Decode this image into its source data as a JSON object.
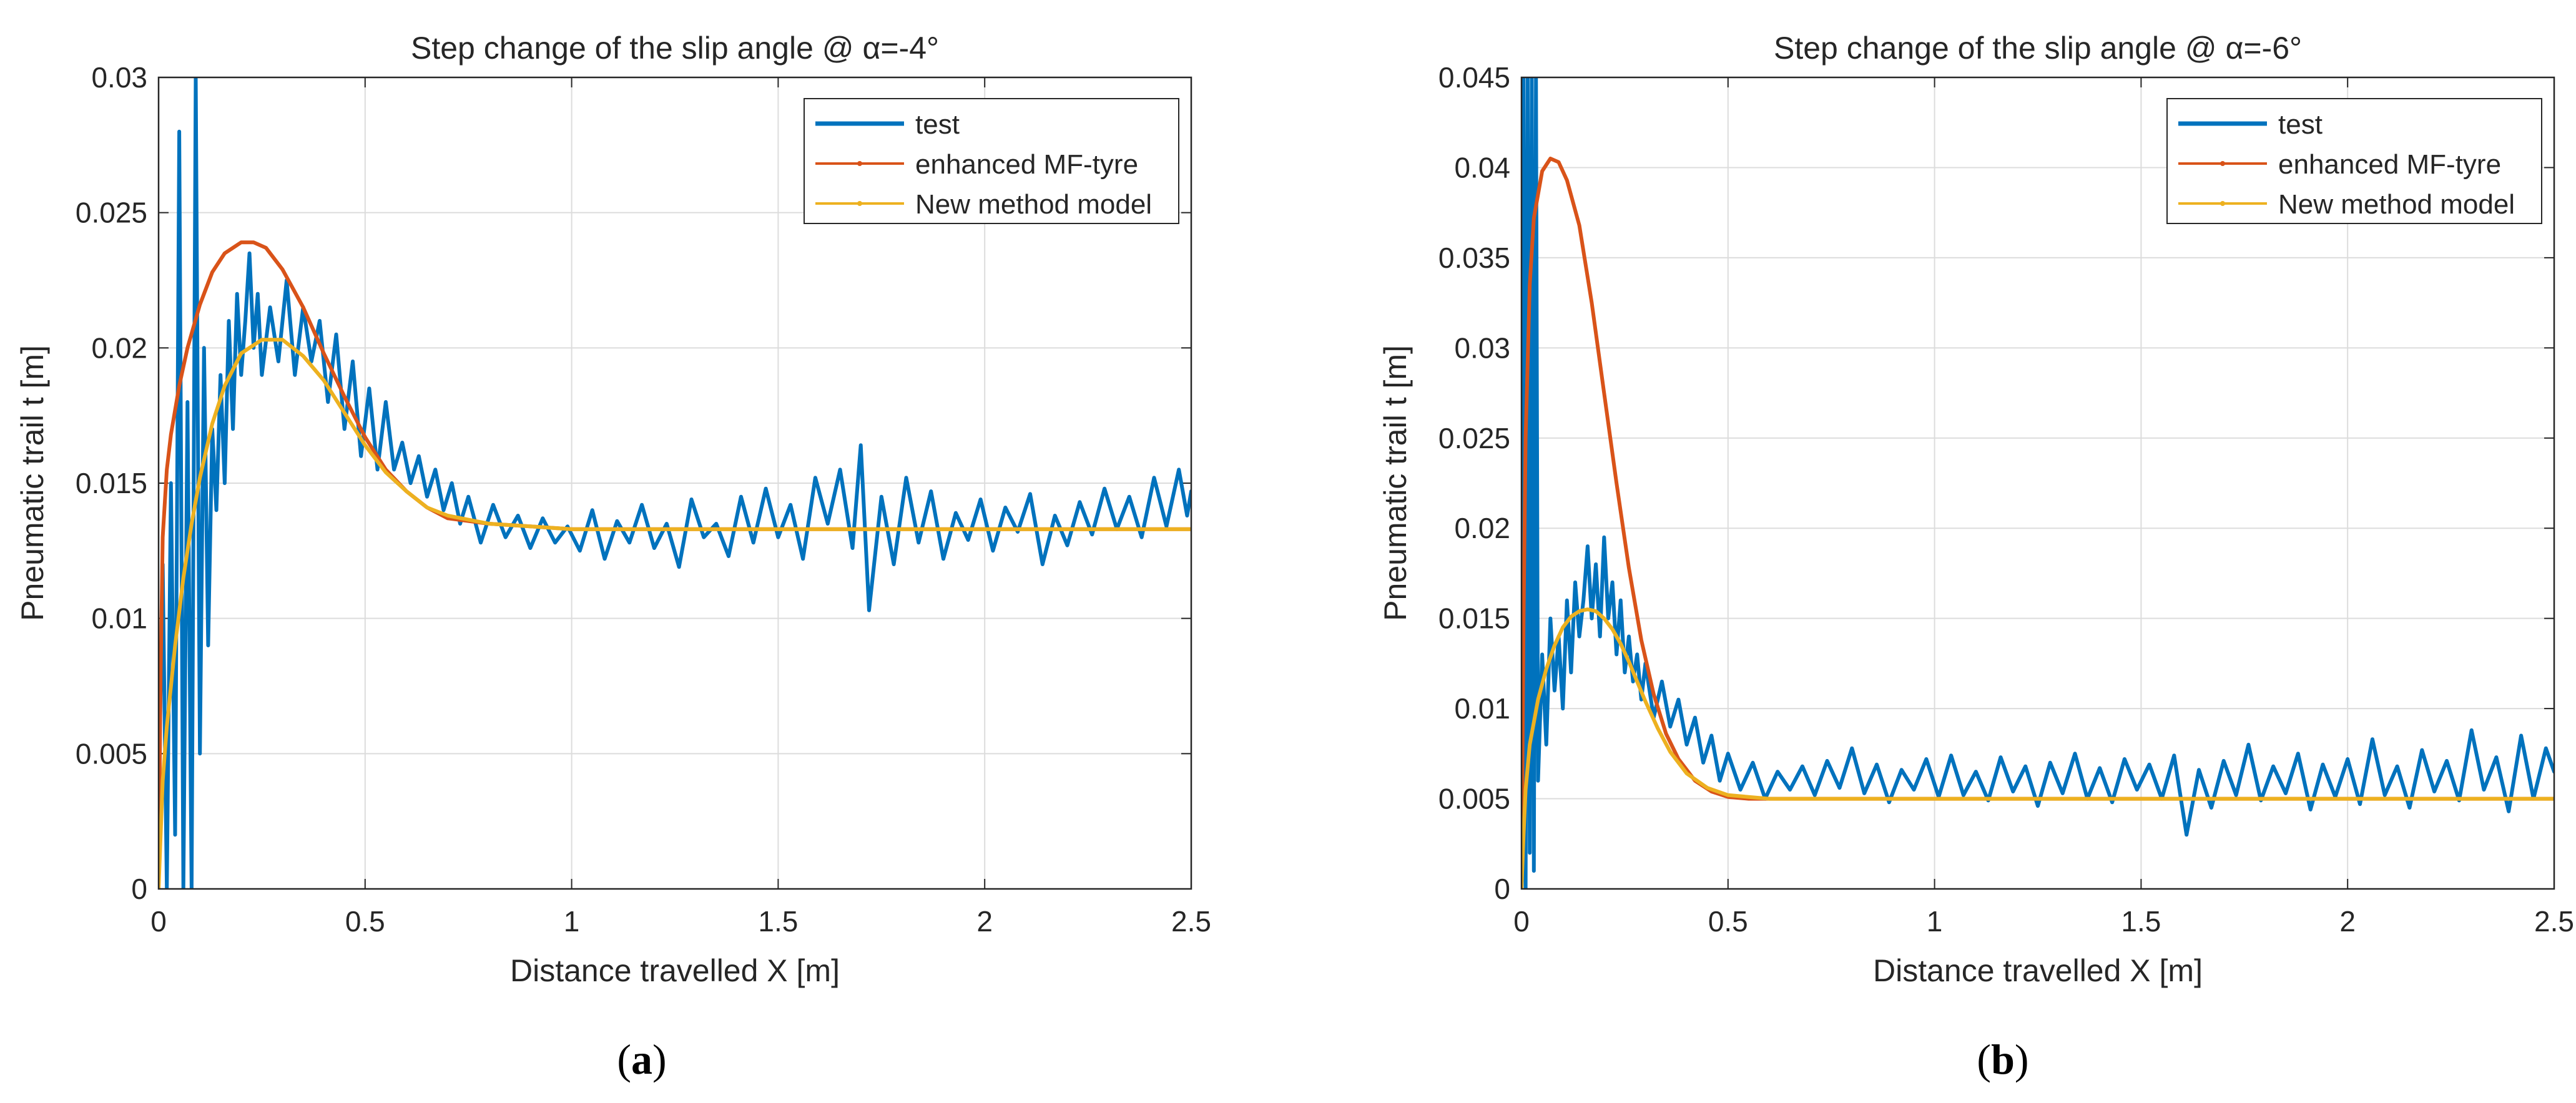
{
  "chart_data": [
    {
      "type": "line",
      "title": "Step change of the slip angle @ α=-4°",
      "xlabel": "Distance travelled X [m]",
      "ylabel": "Pneumatic trail t [m]",
      "xlim": [
        0,
        2.5
      ],
      "ylim": [
        0,
        0.03
      ],
      "xticks": [
        0,
        0.5,
        1,
        1.5,
        2,
        2.5
      ],
      "xtick_labels": [
        "0",
        "0.5",
        "1",
        "1.5",
        "2",
        "2.5"
      ],
      "yticks": [
        0,
        0.005,
        0.01,
        0.015,
        0.02,
        0.025,
        0.03
      ],
      "ytick_labels": [
        "0",
        "0.005",
        "0.01",
        "0.015",
        "0.02",
        "0.025",
        "0.03"
      ],
      "grid": true,
      "legend_position": "top-right",
      "panel_label": "a",
      "series": [
        {
          "name": "test",
          "color": "#0072BD",
          "x": [
            0,
            0.01,
            0.02,
            0.03,
            0.04,
            0.05,
            0.06,
            0.07,
            0.08,
            0.09,
            0.1,
            0.11,
            0.12,
            0.13,
            0.14,
            0.15,
            0.16,
            0.17,
            0.18,
            0.19,
            0.2,
            0.21,
            0.22,
            0.23,
            0.24,
            0.25,
            0.27,
            0.29,
            0.31,
            0.33,
            0.35,
            0.37,
            0.39,
            0.41,
            0.43,
            0.45,
            0.47,
            0.49,
            0.51,
            0.53,
            0.55,
            0.57,
            0.59,
            0.61,
            0.63,
            0.65,
            0.67,
            0.69,
            0.71,
            0.73,
            0.75,
            0.78,
            0.81,
            0.84,
            0.87,
            0.9,
            0.93,
            0.96,
            0.99,
            1.02,
            1.05,
            1.08,
            1.11,
            1.14,
            1.17,
            1.2,
            1.23,
            1.26,
            1.29,
            1.32,
            1.35,
            1.38,
            1.41,
            1.44,
            1.47,
            1.5,
            1.53,
            1.56,
            1.59,
            1.62,
            1.65,
            1.68,
            1.7,
            1.72,
            1.75,
            1.78,
            1.81,
            1.84,
            1.87,
            1.9,
            1.93,
            1.96,
            1.99,
            2.02,
            2.05,
            2.08,
            2.11,
            2.14,
            2.17,
            2.2,
            2.23,
            2.26,
            2.29,
            2.32,
            2.35,
            2.38,
            2.41,
            2.44,
            2.47,
            2.49,
            2.5
          ],
          "y": [
            0.003,
            0.012,
            0.0,
            0.015,
            0.002,
            0.028,
            0.0,
            0.018,
            0.0,
            0.03,
            0.005,
            0.02,
            0.009,
            0.017,
            0.014,
            0.019,
            0.015,
            0.021,
            0.017,
            0.022,
            0.019,
            0.021,
            0.0235,
            0.02,
            0.022,
            0.019,
            0.0215,
            0.0195,
            0.0225,
            0.019,
            0.0215,
            0.0195,
            0.021,
            0.018,
            0.0205,
            0.017,
            0.0195,
            0.016,
            0.0185,
            0.0155,
            0.018,
            0.0155,
            0.0165,
            0.015,
            0.016,
            0.0145,
            0.0155,
            0.014,
            0.015,
            0.0135,
            0.0145,
            0.0128,
            0.0142,
            0.013,
            0.0138,
            0.0126,
            0.0137,
            0.0128,
            0.0134,
            0.0125,
            0.014,
            0.0122,
            0.0136,
            0.0128,
            0.0142,
            0.0126,
            0.0135,
            0.0119,
            0.0144,
            0.013,
            0.0135,
            0.0123,
            0.0145,
            0.0128,
            0.0148,
            0.013,
            0.0142,
            0.0122,
            0.0152,
            0.0135,
            0.0155,
            0.0126,
            0.0164,
            0.0103,
            0.0145,
            0.012,
            0.0152,
            0.0128,
            0.0147,
            0.0122,
            0.0139,
            0.0129,
            0.0144,
            0.0125,
            0.0141,
            0.0132,
            0.0146,
            0.012,
            0.0138,
            0.0127,
            0.0143,
            0.0131,
            0.0148,
            0.0133,
            0.0145,
            0.013,
            0.0152,
            0.0134,
            0.0155,
            0.0138,
            0.0147
          ]
        },
        {
          "name": "enhanced MF-tyre",
          "color": "#D95319",
          "x": [
            0,
            0.005,
            0.01,
            0.02,
            0.03,
            0.05,
            0.07,
            0.1,
            0.13,
            0.16,
            0.2,
            0.23,
            0.26,
            0.3,
            0.35,
            0.4,
            0.45,
            0.5,
            0.55,
            0.6,
            0.65,
            0.7,
            0.8,
            0.9,
            1.0,
            1.2,
            1.5,
            2.0,
            2.5
          ],
          "y": [
            0.0,
            0.008,
            0.013,
            0.0155,
            0.0168,
            0.0186,
            0.02,
            0.0216,
            0.0228,
            0.0235,
            0.0239,
            0.0239,
            0.0237,
            0.0229,
            0.0215,
            0.0198,
            0.0182,
            0.0167,
            0.0155,
            0.0147,
            0.0141,
            0.0137,
            0.0135,
            0.0134,
            0.0133,
            0.0133,
            0.0133,
            0.0133,
            0.0133
          ]
        },
        {
          "name": "New method model",
          "color": "#EDB120",
          "x": [
            0,
            0.01,
            0.02,
            0.04,
            0.06,
            0.08,
            0.1,
            0.13,
            0.16,
            0.2,
            0.25,
            0.3,
            0.35,
            0.4,
            0.45,
            0.5,
            0.55,
            0.6,
            0.65,
            0.7,
            0.8,
            0.9,
            1.0,
            1.2,
            1.5,
            2.0,
            2.5
          ],
          "y": [
            0.0,
            0.004,
            0.006,
            0.009,
            0.0115,
            0.0135,
            0.0152,
            0.0172,
            0.0186,
            0.0198,
            0.0203,
            0.0203,
            0.0197,
            0.0188,
            0.0176,
            0.0164,
            0.0154,
            0.0147,
            0.0141,
            0.0138,
            0.0135,
            0.0134,
            0.0133,
            0.0133,
            0.0133,
            0.0133,
            0.0133
          ]
        }
      ]
    },
    {
      "type": "line",
      "title": "Step change of the slip angle @ α=-6°",
      "xlabel": "Distance travelled X [m]",
      "ylabel": "Pneumatic trail t [m]",
      "xlim": [
        0,
        2.5
      ],
      "ylim": [
        0,
        0.045
      ],
      "xticks": [
        0,
        0.5,
        1,
        1.5,
        2,
        2.5
      ],
      "xtick_labels": [
        "0",
        "0.5",
        "1",
        "1.5",
        "2",
        "2.5"
      ],
      "yticks": [
        0,
        0.005,
        0.01,
        0.015,
        0.02,
        0.025,
        0.03,
        0.035,
        0.04,
        0.045
      ],
      "ytick_labels": [
        "0",
        "0.005",
        "0.01",
        "0.015",
        "0.02",
        "0.025",
        "0.03",
        "0.035",
        "0.04",
        "0.045"
      ],
      "grid": true,
      "legend_position": "top-right",
      "panel_label": "b",
      "series": [
        {
          "name": "test",
          "color": "#0072BD",
          "x": [
            0,
            0.005,
            0.01,
            0.015,
            0.02,
            0.025,
            0.03,
            0.035,
            0.04,
            0.05,
            0.06,
            0.07,
            0.08,
            0.09,
            0.1,
            0.11,
            0.12,
            0.13,
            0.14,
            0.15,
            0.16,
            0.17,
            0.18,
            0.19,
            0.2,
            0.21,
            0.22,
            0.23,
            0.24,
            0.25,
            0.26,
            0.27,
            0.28,
            0.29,
            0.3,
            0.32,
            0.34,
            0.36,
            0.38,
            0.4,
            0.42,
            0.44,
            0.46,
            0.48,
            0.5,
            0.53,
            0.56,
            0.59,
            0.62,
            0.65,
            0.68,
            0.71,
            0.74,
            0.77,
            0.8,
            0.83,
            0.86,
            0.89,
            0.92,
            0.95,
            0.98,
            1.01,
            1.04,
            1.07,
            1.1,
            1.13,
            1.16,
            1.19,
            1.22,
            1.25,
            1.28,
            1.31,
            1.34,
            1.37,
            1.4,
            1.43,
            1.46,
            1.49,
            1.52,
            1.55,
            1.58,
            1.61,
            1.64,
            1.67,
            1.7,
            1.73,
            1.76,
            1.79,
            1.82,
            1.85,
            1.88,
            1.91,
            1.94,
            1.97,
            2.0,
            2.03,
            2.06,
            2.09,
            2.12,
            2.15,
            2.18,
            2.21,
            2.24,
            2.27,
            2.3,
            2.33,
            2.36,
            2.39,
            2.42,
            2.45,
            2.48,
            2.5
          ],
          "y": [
            0.0,
            0.045,
            0.0,
            0.045,
            0.002,
            0.045,
            0.001,
            0.045,
            0.006,
            0.013,
            0.008,
            0.015,
            0.011,
            0.014,
            0.01,
            0.016,
            0.012,
            0.017,
            0.014,
            0.016,
            0.019,
            0.015,
            0.018,
            0.014,
            0.0195,
            0.015,
            0.017,
            0.013,
            0.016,
            0.012,
            0.014,
            0.0115,
            0.013,
            0.0105,
            0.0125,
            0.0095,
            0.0115,
            0.009,
            0.0105,
            0.008,
            0.0095,
            0.007,
            0.0085,
            0.006,
            0.0075,
            0.0055,
            0.007,
            0.005,
            0.0065,
            0.0055,
            0.0068,
            0.0052,
            0.0071,
            0.0056,
            0.0078,
            0.0053,
            0.0069,
            0.0048,
            0.0066,
            0.0055,
            0.0072,
            0.0051,
            0.0074,
            0.0052,
            0.0065,
            0.0049,
            0.0073,
            0.0054,
            0.0068,
            0.0046,
            0.007,
            0.0053,
            0.0075,
            0.005,
            0.0067,
            0.0048,
            0.0072,
            0.0055,
            0.0069,
            0.005,
            0.0074,
            0.003,
            0.0066,
            0.0045,
            0.0071,
            0.0052,
            0.008,
            0.0049,
            0.0068,
            0.0053,
            0.0075,
            0.0044,
            0.0069,
            0.0051,
            0.0072,
            0.0047,
            0.0083,
            0.0052,
            0.0068,
            0.0045,
            0.0077,
            0.0054,
            0.0071,
            0.0049,
            0.0088,
            0.0055,
            0.0073,
            0.0043,
            0.0085,
            0.005,
            0.0078,
            0.0065
          ]
        },
        {
          "name": "enhanced MF-tyre",
          "color": "#D95319",
          "x": [
            0,
            0.005,
            0.01,
            0.02,
            0.03,
            0.05,
            0.07,
            0.09,
            0.11,
            0.14,
            0.17,
            0.2,
            0.23,
            0.26,
            0.29,
            0.32,
            0.35,
            0.38,
            0.42,
            0.46,
            0.5,
            0.55,
            0.6,
            0.8,
            1.0,
            1.5,
            2.0,
            2.5
          ],
          "y": [
            0.0,
            0.015,
            0.025,
            0.0335,
            0.0372,
            0.0398,
            0.0405,
            0.0403,
            0.0393,
            0.0368,
            0.0325,
            0.0275,
            0.0225,
            0.0178,
            0.0138,
            0.0108,
            0.0086,
            0.0072,
            0.006,
            0.0054,
            0.0051,
            0.005,
            0.005,
            0.005,
            0.005,
            0.005,
            0.005,
            0.005
          ]
        },
        {
          "name": "New method model",
          "color": "#EDB120",
          "x": [
            0,
            0.005,
            0.01,
            0.02,
            0.04,
            0.06,
            0.08,
            0.1,
            0.12,
            0.14,
            0.16,
            0.18,
            0.2,
            0.22,
            0.24,
            0.26,
            0.28,
            0.3,
            0.33,
            0.36,
            0.4,
            0.45,
            0.5,
            0.55,
            0.6,
            0.8,
            1.0,
            1.5,
            2.0,
            2.5
          ],
          "y": [
            0.0,
            0.003,
            0.0055,
            0.008,
            0.0105,
            0.0122,
            0.0135,
            0.0145,
            0.0151,
            0.0154,
            0.0155,
            0.0154,
            0.015,
            0.0144,
            0.0136,
            0.0126,
            0.0115,
            0.0104,
            0.0089,
            0.0076,
            0.0064,
            0.0056,
            0.0052,
            0.0051,
            0.005,
            0.005,
            0.005,
            0.005,
            0.005,
            0.005
          ]
        }
      ]
    }
  ]
}
